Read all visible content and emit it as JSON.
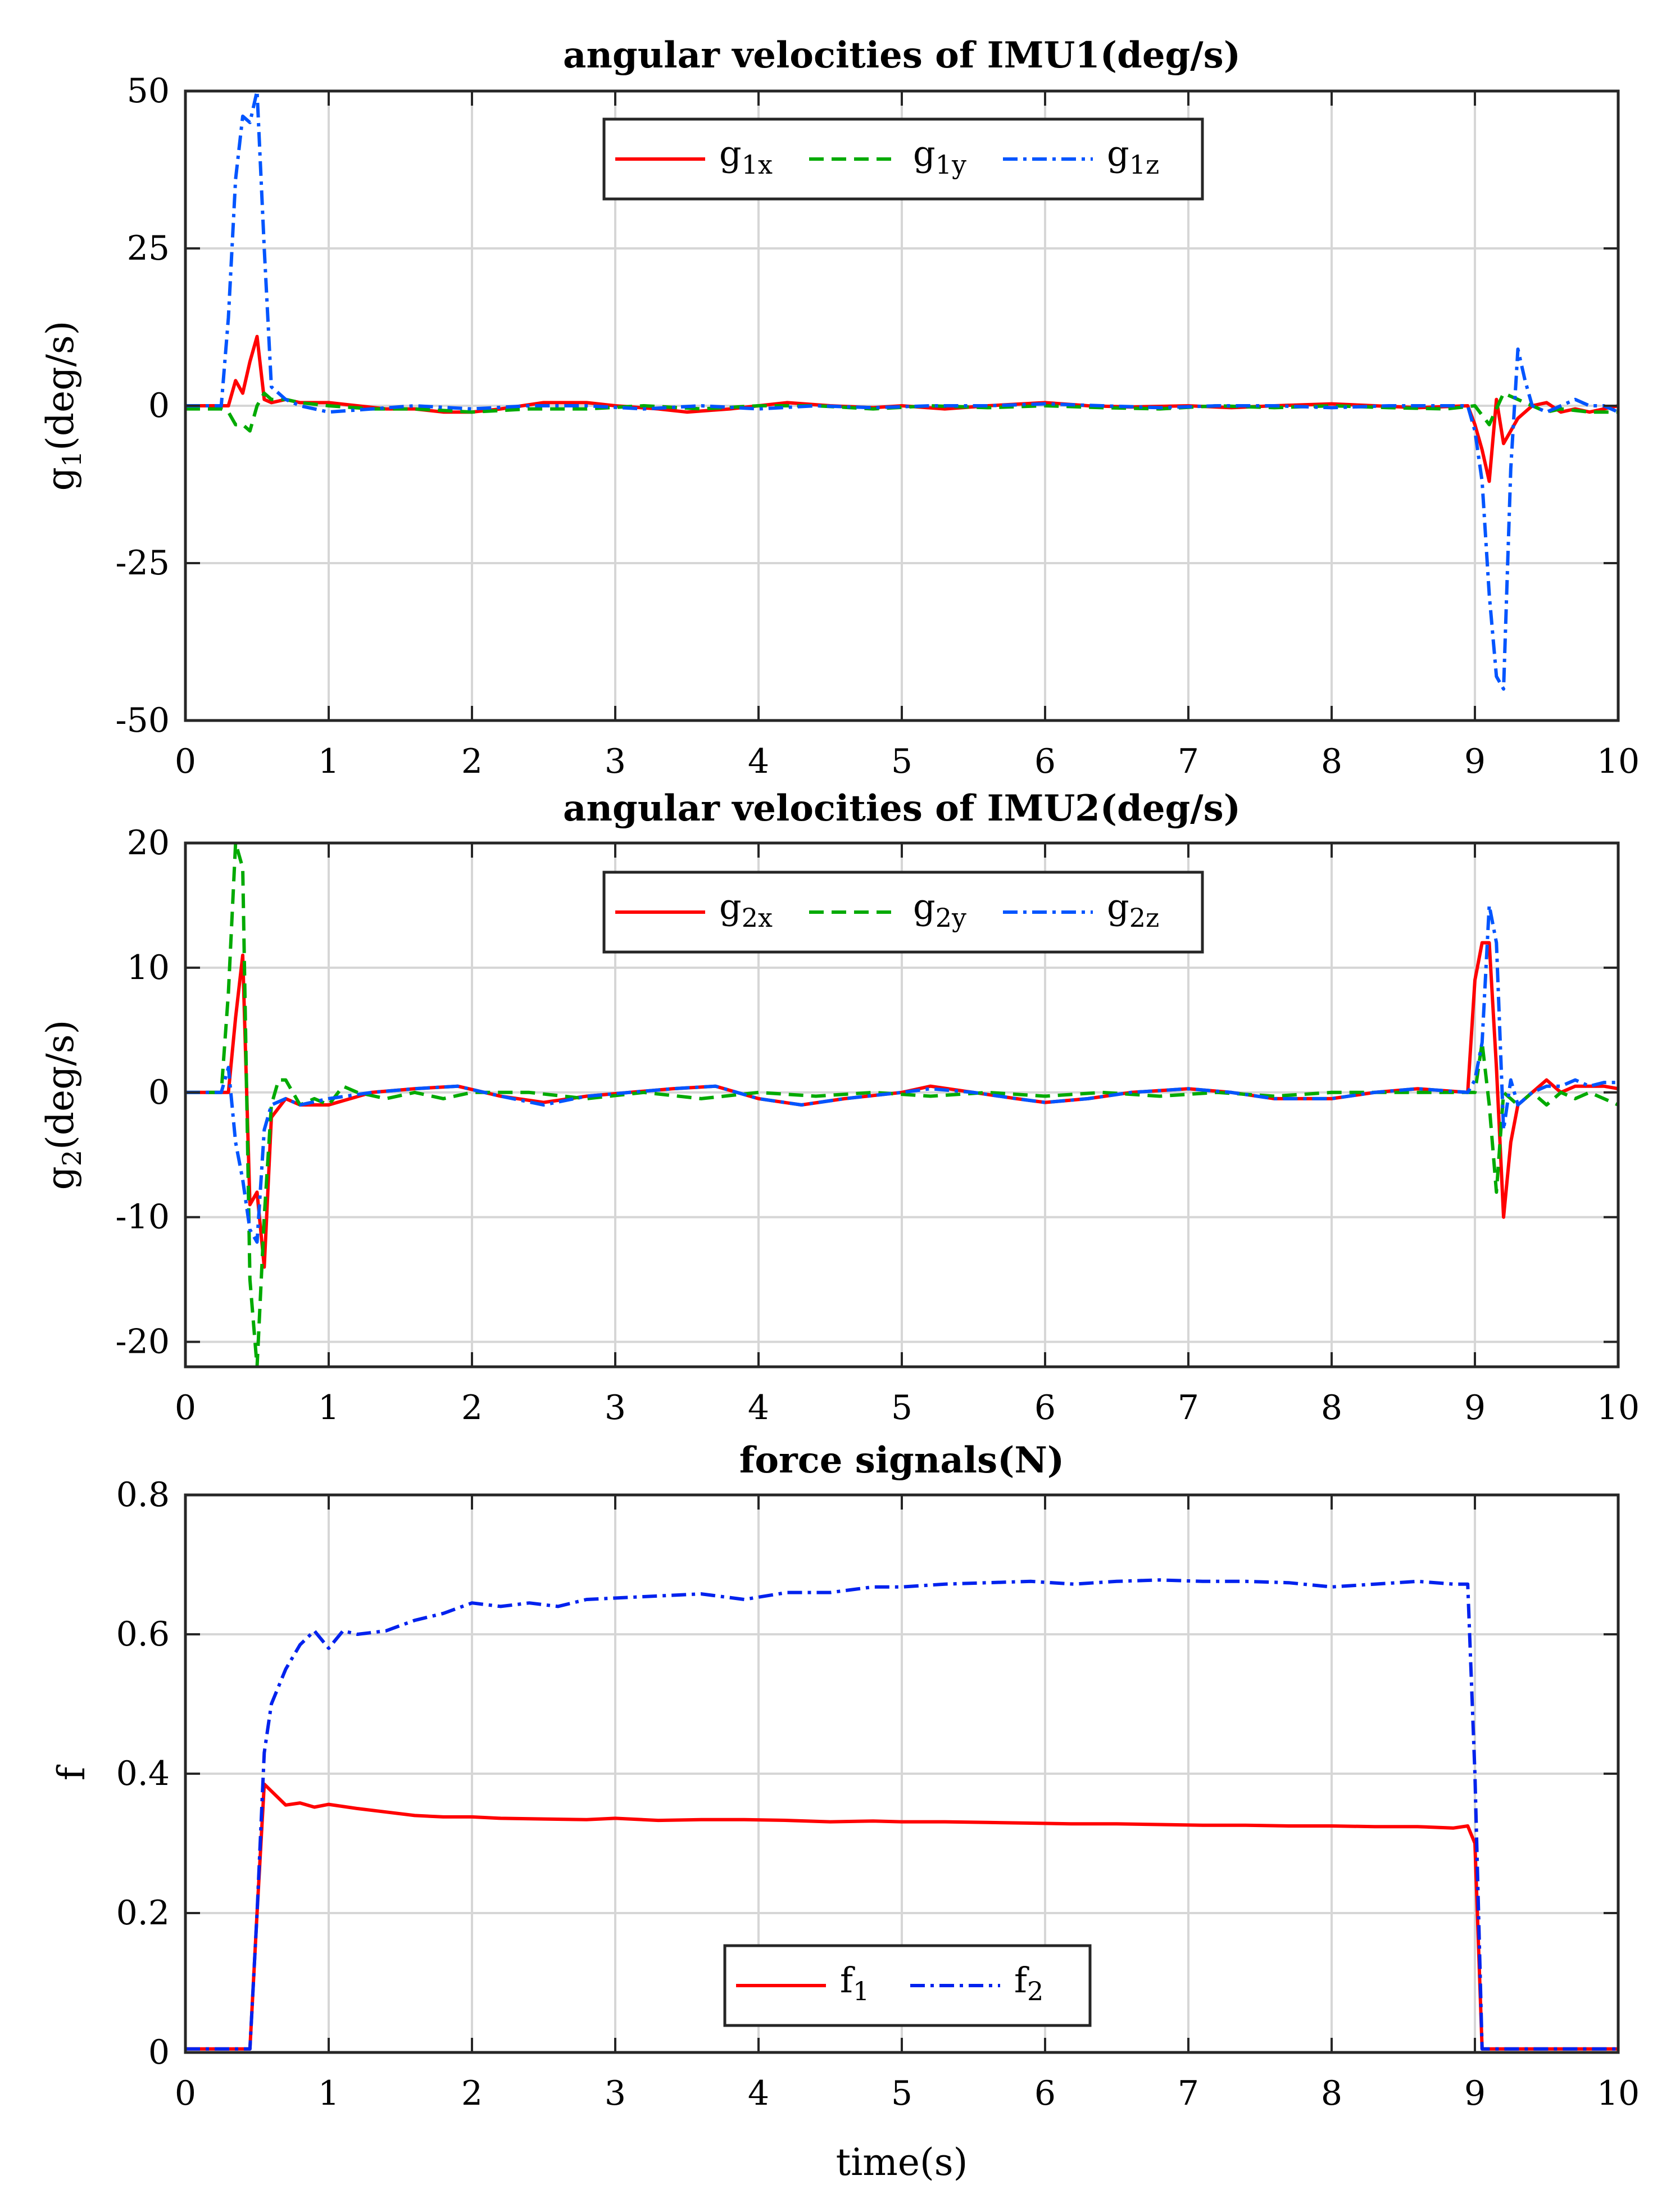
{
  "chart_data": [
    {
      "type": "line",
      "title": "angular velocities of IMU1(deg/s)",
      "ylabel_main": "g",
      "ylabel_sub": "1",
      "ylabel_rest": "(deg/s)",
      "xlabel": "",
      "xlim": [
        0,
        10
      ],
      "ylim": [
        -50,
        50
      ],
      "xticks": [
        0,
        1,
        2,
        3,
        4,
        5,
        6,
        7,
        8,
        9,
        10
      ],
      "yticks": [
        -50,
        -25,
        0,
        25,
        50
      ],
      "grid": true,
      "legend": {
        "position": "top-center",
        "layout": "horizontal"
      },
      "series": [
        {
          "name": "g1x",
          "label_main": "g",
          "label_sub": "1x",
          "color": "#ff0000",
          "dash": "solid",
          "x": [
            0,
            0.25,
            0.3,
            0.35,
            0.4,
            0.45,
            0.5,
            0.55,
            0.6,
            0.7,
            0.8,
            1.0,
            1.2,
            1.4,
            1.6,
            1.8,
            2.0,
            2.2,
            2.5,
            2.8,
            3.0,
            3.3,
            3.5,
            3.8,
            4.0,
            4.2,
            4.5,
            4.8,
            5.0,
            5.3,
            5.6,
            6.0,
            6.3,
            6.6,
            7.0,
            7.3,
            7.6,
            8.0,
            8.3,
            8.6,
            8.95,
            9.0,
            9.05,
            9.1,
            9.15,
            9.2,
            9.3,
            9.4,
            9.5,
            9.6,
            9.7,
            9.8,
            10.0
          ],
          "y": [
            0,
            0,
            0,
            4,
            2,
            7,
            11,
            1,
            0.5,
            1,
            0.5,
            0.5,
            0,
            -0.5,
            -0.5,
            -1,
            -1,
            -0.5,
            0.5,
            0.5,
            0,
            -0.5,
            -1,
            -0.5,
            0,
            0.5,
            0,
            -0.3,
            0,
            -0.5,
            0,
            0.5,
            0,
            -0.2,
            0,
            -0.3,
            0,
            0.3,
            0,
            -0.3,
            0,
            -3,
            -7,
            -12,
            1,
            -6,
            -2,
            0,
            0.5,
            -1,
            -0.5,
            -1,
            0
          ]
        },
        {
          "name": "g1y",
          "label_main": "g",
          "label_sub": "1y",
          "color": "#00aa00",
          "dash": "dashed",
          "x": [
            0,
            0.25,
            0.3,
            0.35,
            0.4,
            0.45,
            0.5,
            0.55,
            0.6,
            0.7,
            0.8,
            1.0,
            1.3,
            1.6,
            2.0,
            2.4,
            2.8,
            3.2,
            3.6,
            4.0,
            4.4,
            4.8,
            5.2,
            5.6,
            6.0,
            6.4,
            6.8,
            7.2,
            7.6,
            8.0,
            8.4,
            8.8,
            9.0,
            9.1,
            9.2,
            9.3,
            9.4,
            9.5,
            9.6,
            9.8,
            10.0
          ],
          "y": [
            -0.5,
            -0.5,
            -1,
            -3,
            -3,
            -4,
            0,
            2,
            1,
            1,
            0.5,
            0,
            -0.5,
            -0.5,
            -1,
            -0.5,
            -0.5,
            0,
            -0.5,
            0,
            0,
            -0.5,
            0,
            -0.3,
            0,
            -0.3,
            -0.5,
            0,
            -0.3,
            0,
            -0.3,
            -0.5,
            0,
            -3,
            2,
            1,
            0,
            -1,
            -0.5,
            -1,
            -1
          ]
        },
        {
          "name": "g1z",
          "label_main": "g",
          "label_sub": "1z",
          "color": "#0055ff",
          "dash": "dashdot",
          "x": [
            0,
            0.25,
            0.3,
            0.35,
            0.4,
            0.45,
            0.5,
            0.55,
            0.6,
            0.7,
            0.8,
            0.9,
            1.0,
            1.3,
            1.6,
            2.0,
            2.4,
            2.8,
            3.2,
            3.6,
            4.0,
            4.4,
            4.8,
            5.2,
            5.6,
            6.0,
            6.4,
            6.8,
            7.2,
            7.6,
            8.0,
            8.4,
            8.8,
            8.95,
            9.0,
            9.05,
            9.1,
            9.15,
            9.2,
            9.25,
            9.3,
            9.35,
            9.4,
            9.5,
            9.6,
            9.7,
            9.8,
            9.9,
            10.0
          ],
          "y": [
            0,
            0,
            14,
            36,
            46,
            45,
            50,
            25,
            3,
            1,
            0,
            -0.5,
            -1,
            -0.5,
            0,
            -0.5,
            0,
            0,
            -0.5,
            0,
            -0.5,
            0,
            -0.3,
            0,
            0,
            0.3,
            0,
            -0.3,
            0,
            0,
            -0.3,
            0,
            0,
            0,
            -4,
            -12,
            -30,
            -43,
            -45,
            -10,
            9,
            4,
            0,
            -1,
            0,
            1,
            0,
            0,
            -1
          ]
        }
      ]
    },
    {
      "type": "line",
      "title": "angular velocities of IMU2(deg/s)",
      "ylabel_main": "g",
      "ylabel_sub": "2",
      "ylabel_rest": "(deg/s)",
      "xlabel": "",
      "xlim": [
        0,
        10
      ],
      "ylim": [
        -22,
        20
      ],
      "xticks": [
        0,
        1,
        2,
        3,
        4,
        5,
        6,
        7,
        8,
        9,
        10
      ],
      "yticks": [
        -20,
        -10,
        0,
        10,
        20
      ],
      "grid": true,
      "legend": {
        "position": "top-center",
        "layout": "horizontal"
      },
      "series": [
        {
          "name": "g2x",
          "label_main": "g",
          "label_sub": "2x",
          "color": "#ff0000",
          "dash": "solid",
          "x": [
            0,
            0.2,
            0.25,
            0.3,
            0.35,
            0.4,
            0.45,
            0.5,
            0.55,
            0.6,
            0.7,
            0.8,
            1.0,
            1.3,
            1.6,
            1.9,
            2.2,
            2.5,
            2.8,
            3.1,
            3.4,
            3.7,
            4.0,
            4.3,
            4.6,
            5.0,
            5.2,
            5.5,
            5.8,
            6.0,
            6.3,
            6.6,
            7.0,
            7.3,
            7.6,
            8.0,
            8.3,
            8.6,
            8.95,
            9.0,
            9.05,
            9.1,
            9.15,
            9.2,
            9.25,
            9.3,
            9.4,
            9.5,
            9.6,
            9.7,
            9.8,
            9.9,
            10.0
          ],
          "y": [
            0,
            0,
            0,
            0,
            6,
            11,
            -9,
            -8,
            -14,
            -2,
            -0.5,
            -1,
            -1,
            0,
            0.3,
            0.5,
            -0.3,
            -0.8,
            -0.3,
            0,
            0.3,
            0.5,
            -0.5,
            -1,
            -0.5,
            0,
            0.5,
            0,
            -0.5,
            -0.8,
            -0.5,
            0,
            0.3,
            0,
            -0.5,
            -0.5,
            0,
            0.3,
            0,
            9,
            12,
            12,
            2,
            -10,
            -4,
            -1,
            0,
            1,
            0,
            0.5,
            0.5,
            0.5,
            0.3
          ]
        },
        {
          "name": "g2y",
          "label_main": "g",
          "label_sub": "2y",
          "color": "#00aa00",
          "dash": "dashed",
          "x": [
            0,
            0.2,
            0.25,
            0.3,
            0.35,
            0.4,
            0.45,
            0.5,
            0.55,
            0.6,
            0.65,
            0.7,
            0.8,
            0.9,
            1.0,
            1.1,
            1.2,
            1.4,
            1.6,
            1.8,
            2.0,
            2.4,
            2.8,
            3.2,
            3.6,
            4.0,
            4.4,
            4.8,
            5.2,
            5.6,
            6.0,
            6.4,
            6.8,
            7.2,
            7.6,
            8.0,
            8.4,
            8.8,
            9.0,
            9.05,
            9.1,
            9.15,
            9.2,
            9.3,
            9.4,
            9.5,
            9.6,
            9.7,
            9.8,
            9.9,
            10.0
          ],
          "y": [
            0,
            0,
            0,
            8,
            20,
            18,
            -15,
            -22,
            -10,
            -1,
            1,
            1,
            -1,
            -0.5,
            -1,
            0.5,
            0,
            -0.5,
            0,
            -0.5,
            0,
            0,
            -0.5,
            0,
            -0.5,
            0,
            -0.3,
            0,
            -0.3,
            0,
            -0.3,
            0,
            -0.3,
            0,
            -0.3,
            0,
            0,
            0,
            0,
            4,
            -1,
            -8,
            0,
            -1,
            0,
            -1,
            0,
            -0.5,
            0,
            -0.5,
            -1
          ]
        },
        {
          "name": "g2z",
          "label_main": "g",
          "label_sub": "2z",
          "color": "#0055ff",
          "dash": "dashdot",
          "x": [
            0,
            0.25,
            0.3,
            0.35,
            0.4,
            0.45,
            0.5,
            0.55,
            0.6,
            0.7,
            0.8,
            1.0,
            1.3,
            1.6,
            1.9,
            2.2,
            2.5,
            2.8,
            3.1,
            3.4,
            3.7,
            4.0,
            4.3,
            4.6,
            5.0,
            5.2,
            5.5,
            5.8,
            6.0,
            6.3,
            6.6,
            7.0,
            7.3,
            7.6,
            8.0,
            8.3,
            8.6,
            8.95,
            9.0,
            9.05,
            9.1,
            9.15,
            9.2,
            9.25,
            9.3,
            9.4,
            9.5,
            9.6,
            9.7,
            9.8,
            9.9,
            10.0
          ],
          "y": [
            0,
            0,
            2,
            -4,
            -7,
            -11,
            -12,
            -3,
            -1,
            -0.5,
            -1,
            -0.5,
            0,
            0.3,
            0.5,
            -0.3,
            -1,
            -0.3,
            0,
            0.3,
            0.5,
            -0.5,
            -1,
            -0.5,
            0,
            0.3,
            0,
            -0.5,
            -0.8,
            -0.5,
            0,
            0.3,
            0,
            -0.5,
            -0.5,
            0,
            0.3,
            0,
            1,
            4,
            15,
            12,
            -3,
            1,
            -1,
            0,
            0.5,
            0.5,
            1,
            0.5,
            0.8,
            0.8
          ]
        }
      ]
    },
    {
      "type": "line",
      "title": "force signals(N)",
      "ylabel_main": "f",
      "ylabel_sub": "",
      "ylabel_rest": "",
      "xlabel": "time(s)",
      "xlim": [
        0,
        10
      ],
      "ylim": [
        0,
        0.8
      ],
      "xticks": [
        0,
        1,
        2,
        3,
        4,
        5,
        6,
        7,
        8,
        9,
        10
      ],
      "yticks": [
        0,
        0.2,
        0.4,
        0.6,
        0.8
      ],
      "grid": true,
      "legend": {
        "position": "bottom-center",
        "layout": "horizontal"
      },
      "series": [
        {
          "name": "f1",
          "label_main": "f",
          "label_sub": "1",
          "color": "#ff0000",
          "dash": "solid",
          "x": [
            0,
            0.45,
            0.5,
            0.55,
            0.6,
            0.7,
            0.8,
            0.9,
            1.0,
            1.2,
            1.4,
            1.6,
            1.8,
            2.0,
            2.2,
            2.5,
            2.8,
            3.0,
            3.3,
            3.6,
            3.9,
            4.2,
            4.5,
            4.8,
            5.0,
            5.3,
            5.6,
            5.9,
            6.2,
            6.5,
            6.8,
            7.1,
            7.4,
            7.7,
            8.0,
            8.3,
            8.6,
            8.85,
            8.95,
            9.0,
            9.05,
            10.0
          ],
          "y": [
            0.005,
            0.005,
            0.2,
            0.385,
            0.375,
            0.355,
            0.358,
            0.352,
            0.356,
            0.35,
            0.345,
            0.34,
            0.338,
            0.338,
            0.336,
            0.335,
            0.334,
            0.336,
            0.333,
            0.334,
            0.334,
            0.333,
            0.331,
            0.332,
            0.331,
            0.331,
            0.33,
            0.329,
            0.328,
            0.328,
            0.327,
            0.326,
            0.326,
            0.325,
            0.325,
            0.324,
            0.324,
            0.322,
            0.325,
            0.3,
            0.005,
            0.005
          ]
        },
        {
          "name": "f2",
          "label_main": "f",
          "label_sub": "2",
          "color": "#0022ee",
          "dash": "dashdot",
          "x": [
            0,
            0.45,
            0.5,
            0.55,
            0.6,
            0.7,
            0.8,
            0.9,
            1.0,
            1.1,
            1.2,
            1.4,
            1.6,
            1.8,
            2.0,
            2.2,
            2.4,
            2.6,
            2.8,
            3.0,
            3.3,
            3.6,
            3.9,
            4.2,
            4.5,
            4.8,
            5.0,
            5.3,
            5.6,
            5.9,
            6.2,
            6.5,
            6.8,
            7.1,
            7.4,
            7.7,
            8.0,
            8.3,
            8.6,
            8.85,
            8.95,
            9.0,
            9.05,
            10.0
          ],
          "y": [
            0.005,
            0.005,
            0.2,
            0.43,
            0.5,
            0.55,
            0.585,
            0.605,
            0.58,
            0.605,
            0.6,
            0.605,
            0.62,
            0.63,
            0.645,
            0.64,
            0.645,
            0.64,
            0.65,
            0.652,
            0.655,
            0.658,
            0.65,
            0.66,
            0.66,
            0.668,
            0.668,
            0.672,
            0.674,
            0.676,
            0.672,
            0.676,
            0.678,
            0.676,
            0.676,
            0.674,
            0.668,
            0.672,
            0.676,
            0.672,
            0.672,
            0.4,
            0.005,
            0.005
          ]
        }
      ]
    }
  ]
}
